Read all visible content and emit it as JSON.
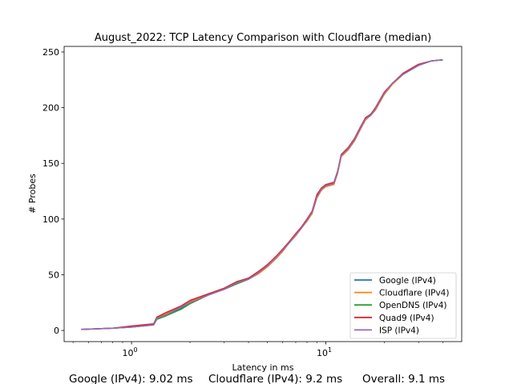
{
  "chart_data": {
    "type": "line",
    "title": "August_2022: TCP Latency Comparison with Cloudflare (median)",
    "xlabel": "Latency in ms",
    "ylabel": "# Probes",
    "xscale": "log",
    "xlim": [
      0.45,
      50
    ],
    "ylim": [
      -10,
      255
    ],
    "x_ticks": [
      {
        "value": 1,
        "label": "10",
        "exp": "0"
      },
      {
        "value": 10,
        "label": "10",
        "exp": "1"
      }
    ],
    "y_ticks": [
      0,
      50,
      100,
      150,
      200,
      250
    ],
    "legend_position": "lower right",
    "grid": false,
    "series": [
      {
        "name": "Google (IPv4)",
        "color": "#1f77b4",
        "x": [
          0.55,
          0.8,
          1.0,
          1.3,
          1.35,
          1.5,
          1.8,
          2.0,
          2.5,
          3.0,
          3.5,
          4.0,
          4.5,
          5.0,
          5.5,
          6.0,
          6.5,
          7.0,
          7.5,
          8.0,
          8.5,
          9.0,
          9.5,
          10.0,
          11.0,
          11.5,
          12.0,
          13.0,
          14.0,
          15.0,
          16.0,
          17.0,
          18.0,
          20.0,
          22.0,
          25.0,
          30.0,
          35.0,
          40.0
        ],
        "y": [
          1,
          2,
          3,
          5,
          11,
          14,
          20,
          25,
          32,
          37,
          42,
          46,
          51,
          58,
          65,
          72,
          79,
          86,
          92,
          99,
          106,
          120,
          126,
          130,
          132,
          142,
          157,
          162,
          170,
          180,
          190,
          193,
          198,
          213,
          222,
          230,
          238,
          242,
          243
        ]
      },
      {
        "name": "Cloudflare (IPv4)",
        "color": "#ff7f0e",
        "x": [
          0.55,
          0.8,
          1.0,
          1.3,
          1.35,
          1.5,
          1.8,
          2.0,
          2.5,
          3.0,
          3.5,
          4.0,
          4.5,
          5.0,
          5.5,
          6.0,
          6.5,
          7.0,
          7.5,
          8.0,
          8.5,
          9.0,
          9.5,
          10.0,
          11.0,
          11.5,
          12.0,
          13.0,
          14.0,
          15.0,
          16.0,
          17.0,
          18.0,
          20.0,
          22.0,
          25.0,
          30.0,
          35.0,
          40.0
        ],
        "y": [
          1,
          2,
          3,
          5,
          11,
          15,
          21,
          26,
          33,
          37,
          42,
          46,
          51,
          57,
          64,
          71,
          79,
          85,
          92,
          98,
          105,
          119,
          126,
          129,
          131,
          141,
          156,
          162,
          170,
          180,
          189,
          193,
          198,
          212,
          221,
          230,
          238,
          242,
          243
        ]
      },
      {
        "name": "OpenDNS (IPv4)",
        "color": "#2ca02c",
        "x": [
          0.55,
          0.8,
          1.0,
          1.3,
          1.35,
          1.5,
          1.8,
          2.0,
          2.5,
          3.0,
          3.5,
          4.0,
          4.5,
          5.0,
          5.5,
          6.0,
          6.5,
          7.0,
          7.5,
          8.0,
          8.5,
          9.0,
          9.5,
          10.0,
          11.0,
          11.5,
          12.0,
          13.0,
          14.0,
          15.0,
          16.0,
          17.0,
          18.0,
          20.0,
          22.0,
          25.0,
          30.0,
          35.0,
          40.0
        ],
        "y": [
          1,
          2,
          3,
          5,
          10,
          13,
          19,
          24,
          32,
          37,
          42,
          46,
          52,
          58,
          66,
          72,
          80,
          86,
          93,
          99,
          107,
          121,
          127,
          131,
          132,
          142,
          157,
          163,
          171,
          181,
          190,
          193,
          199,
          213,
          222,
          230,
          238,
          242,
          243
        ]
      },
      {
        "name": "Quad9 (IPv4)",
        "color": "#d62728",
        "x": [
          0.55,
          0.8,
          1.0,
          1.3,
          1.35,
          1.5,
          1.8,
          2.0,
          2.5,
          3.0,
          3.5,
          4.0,
          4.5,
          5.0,
          5.5,
          6.0,
          6.5,
          7.0,
          7.5,
          8.0,
          8.5,
          9.0,
          9.5,
          10.0,
          11.0,
          11.5,
          12.0,
          13.0,
          14.0,
          15.0,
          16.0,
          17.0,
          18.0,
          20.0,
          22.0,
          25.0,
          30.0,
          35.0,
          40.0
        ],
        "y": [
          1,
          2,
          4,
          6,
          12,
          16,
          22,
          27,
          33,
          38,
          44,
          47,
          53,
          59,
          66,
          73,
          80,
          87,
          93,
          100,
          107,
          122,
          128,
          131,
          133,
          143,
          158,
          164,
          172,
          182,
          191,
          194,
          200,
          214,
          222,
          231,
          239,
          242,
          243
        ]
      },
      {
        "name": "ISP (IPv4)",
        "color": "#9467bd",
        "x": [
          0.55,
          0.8,
          1.0,
          1.3,
          1.35,
          1.5,
          1.8,
          2.0,
          2.5,
          3.0,
          3.5,
          4.0,
          4.5,
          5.0,
          5.5,
          6.0,
          6.5,
          7.0,
          7.5,
          8.0,
          8.5,
          9.0,
          9.5,
          10.0,
          11.0,
          11.5,
          12.0,
          13.0,
          14.0,
          15.0,
          16.0,
          17.0,
          18.0,
          20.0,
          22.0,
          25.0,
          30.0,
          35.0,
          40.0
        ],
        "y": [
          1,
          2,
          3,
          5,
          11,
          14,
          21,
          25,
          32,
          37,
          43,
          46,
          52,
          58,
          65,
          72,
          79,
          86,
          92,
          99,
          106,
          120,
          127,
          130,
          132,
          142,
          157,
          163,
          171,
          181,
          190,
          193,
          199,
          213,
          222,
          230,
          238,
          242,
          243
        ]
      }
    ]
  },
  "footer": {
    "google": "Google (IPv4): 9.02 ms",
    "cloudflare": "Cloudflare (IPv4): 9.2 ms",
    "overall": "Overall: 9.1 ms"
  }
}
